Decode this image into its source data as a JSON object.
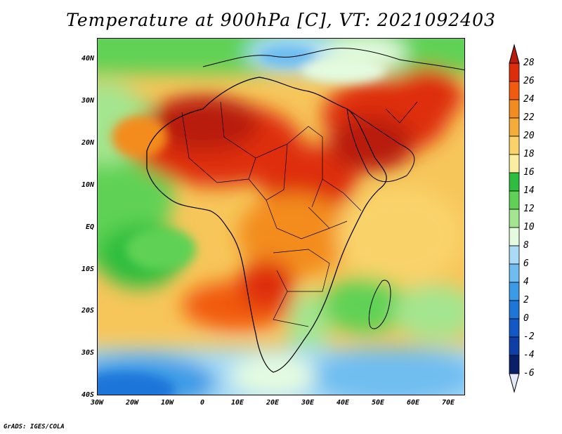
{
  "title": "Temperature at 900hPa [C], VT: 2021092403",
  "credit": "GrADS: IGES/COLA",
  "map": {
    "lon_range": [
      -30,
      75
    ],
    "lat_range": [
      -40,
      45
    ],
    "y_ticks": [
      "40N",
      "30N",
      "20N",
      "10N",
      "EQ",
      "10S",
      "20S",
      "30S",
      "40S"
    ],
    "x_ticks": [
      "30W",
      "20W",
      "10W",
      "0",
      "10E",
      "20E",
      "30E",
      "40E",
      "50E",
      "60E",
      "70E"
    ],
    "coastlines": "black",
    "field": "shaded temperature"
  },
  "colorbar": {
    "labels": [
      "28",
      "26",
      "24",
      "22",
      "20",
      "18",
      "16",
      "14",
      "12",
      "10",
      "8",
      "6",
      "4",
      "2",
      "0",
      "-2",
      "-4",
      "-6"
    ],
    "colors": [
      "#b81c0d",
      "#de2d0b",
      "#f15a0f",
      "#f38c1e",
      "#f5ad3a",
      "#f9d36a",
      "#fbeea0",
      "#2ebd3c",
      "#5fd255",
      "#a4e58f",
      "#e4fbe0",
      "#a9dbf6",
      "#6fbdf0",
      "#3c9be6",
      "#1f76d9",
      "#1259c7",
      "#0d3fa6",
      "#0a1f6a",
      "#e4e9f9"
    ]
  }
}
